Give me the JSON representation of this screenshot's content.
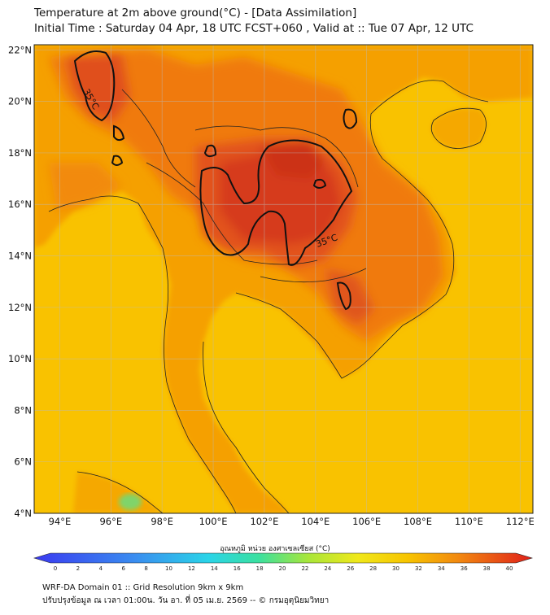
{
  "header": {
    "title": "Temperature at 2m above ground(°C) - [Data Assimilation]",
    "subtitle": "Initial Time : Saturday 04 Apr, 18 UTC FCST+060 , Valid at :: Tue 07 Apr, 12 UTC"
  },
  "map": {
    "lon_labels": [
      "94°E",
      "96°E",
      "98°E",
      "100°E",
      "102°E",
      "104°E",
      "106°E",
      "108°E",
      "110°E",
      "112°E"
    ],
    "lat_labels": [
      "22°N",
      "20°N",
      "18°N",
      "16°N",
      "14°N",
      "12°N",
      "10°N",
      "8°N",
      "6°N",
      "4°N"
    ],
    "lon_range": [
      93,
      112.5
    ],
    "lat_range": [
      4,
      22.2
    ],
    "contour_label": "35°C",
    "colors": {
      "sea": "#f9c400",
      "land_mid": "#f5a300",
      "land_hot": "#ee6a12",
      "land_hottest": "#d93b1a",
      "cool": "#7fd46a"
    }
  },
  "colorbar": {
    "title": "อุณหภูมิ หน่วย องศาเซลเซียส (°C)",
    "ticks": [
      "0",
      "2",
      "4",
      "6",
      "8",
      "10",
      "12",
      "14",
      "16",
      "18",
      "20",
      "22",
      "24",
      "26",
      "28",
      "30",
      "32",
      "34",
      "36",
      "38",
      "40"
    ]
  },
  "footer": {
    "line1": "WRF-DA Domain 01 :: Grid Resolution 9km x 9km",
    "line2": "ปรับปรุงข้อมูล ณ เวลา 01:00น. วัน อา. ที่ 05 เม.ย. 2569 -- © กรมอุตุนิยมวิทยา"
  }
}
